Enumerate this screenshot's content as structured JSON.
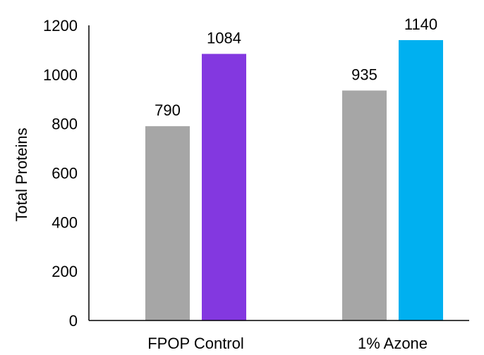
{
  "chart_data": {
    "type": "bar",
    "title": "",
    "xlabel": "",
    "ylabel": "Total Proteins",
    "ylim": [
      0,
      1200
    ],
    "yticks": [
      0,
      200,
      400,
      600,
      800,
      1000,
      1200
    ],
    "grid": false,
    "legend": "none",
    "categories": [
      "FPOP Control",
      "1% Azone"
    ],
    "bars": [
      {
        "category": "FPOP Control",
        "value": 790,
        "label": "790",
        "color": "#a6a6a6"
      },
      {
        "category": "FPOP Control",
        "value": 1084,
        "label": "1084",
        "color": "#8338e0"
      },
      {
        "category": "1% Azone",
        "value": 935,
        "label": "935",
        "color": "#a6a6a6"
      },
      {
        "category": "1% Azone",
        "value": 1140,
        "label": "1140",
        "color": "#00b0f0"
      }
    ]
  }
}
